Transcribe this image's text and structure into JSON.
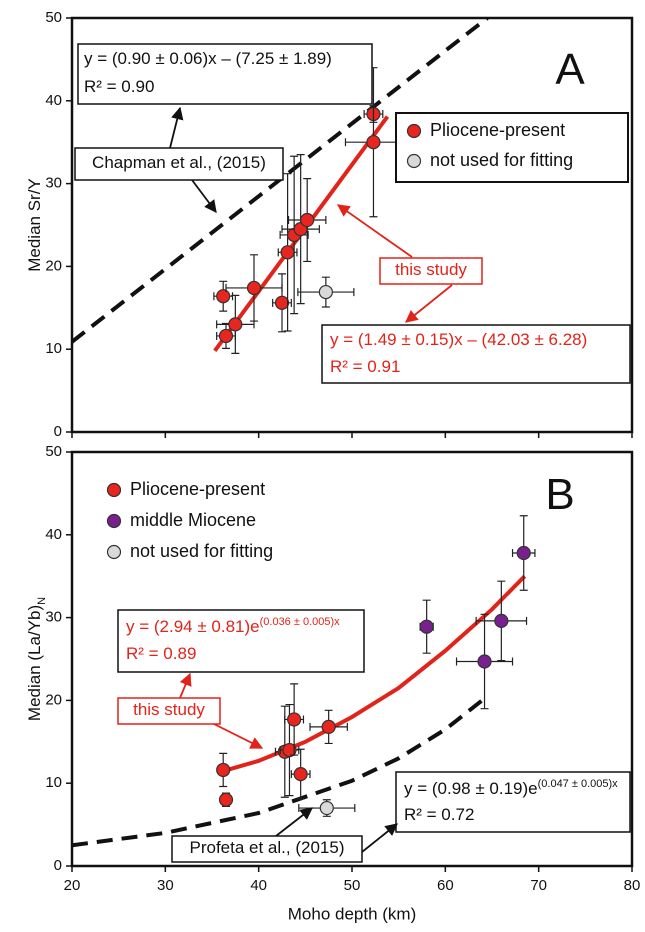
{
  "chart_data": [
    {
      "type": "scatter",
      "panel_label": "A",
      "ylabel": "Median Sr/Y",
      "xlim": [
        20,
        80
      ],
      "ylim": [
        0,
        50
      ],
      "xticks": [
        20,
        30,
        40,
        50,
        60,
        70,
        80
      ],
      "yticks": [
        0,
        10,
        20,
        30,
        40,
        50
      ],
      "legend": "upper right",
      "legend_frame": true,
      "series": [
        {
          "name": "Pliocene-present",
          "color": "#e8251e",
          "x": [
            36.2,
            36.5,
            37.5,
            39.5,
            42.5,
            43.1,
            43.8,
            44.5,
            45.2,
            52.3,
            52.3
          ],
          "values": [
            16.4,
            11.6,
            13.0,
            17.4,
            15.6,
            21.7,
            23.8,
            24.5,
            25.6,
            38.4,
            35.0
          ],
          "xerr": [
            1,
            1,
            2,
            3,
            1,
            1,
            1.5,
            2,
            2,
            1,
            3
          ],
          "yerr": [
            1.8,
            1.5,
            3.5,
            4,
            3.5,
            9.5,
            9.5,
            9,
            5,
            1,
            9
          ]
        },
        {
          "name": "not used for fitting",
          "color": "#d9d9d9",
          "x": [
            47.2
          ],
          "values": [
            16.9
          ],
          "xerr": [
            3
          ],
          "yerr": [
            1.8
          ]
        }
      ],
      "fits": [
        {
          "color": "#e2231a",
          "dashed": false,
          "x": [
            35.3,
            53.8
          ],
          "values": [
            9.8,
            38.1
          ]
        },
        {
          "color": "#111111",
          "dashed": true,
          "x": [
            20,
            64.5
          ],
          "values": [
            10.9,
            50
          ]
        }
      ],
      "annotations": [
        {
          "text": "A",
          "color": "#111111"
        },
        {
          "text": "y = (0.90 ± 0.06)x – (7.25 ± 1.89)",
          "color": "#111111"
        },
        {
          "text": "R² = 0.90",
          "color": "#111111"
        },
        {
          "text": "Chapman et al., (2015)",
          "color": "#111111"
        },
        {
          "text": "this study",
          "color": "#e2231a"
        },
        {
          "text": "y = (1.49 ± 0.15)x – (42.03 ± 6.28)",
          "color": "#e2231a"
        },
        {
          "text": "R² = 0.91",
          "color": "#e2231a"
        }
      ]
    },
    {
      "type": "scatter",
      "panel_label": "B",
      "ylabel": "Median (La/Yb)",
      "ylabel_sub": "N",
      "xlabel": "Moho depth (km)",
      "xlim": [
        20,
        80
      ],
      "ylim": [
        0,
        50
      ],
      "xticks": [
        20,
        30,
        40,
        50,
        60,
        70,
        80
      ],
      "yticks": [
        0,
        10,
        20,
        30,
        40,
        50
      ],
      "legend": "upper left",
      "legend_frame": false,
      "series": [
        {
          "name": "Pliocene-present",
          "color": "#e8251e",
          "x": [
            36.2,
            36.5,
            42.8,
            43.3,
            43.8,
            44.5,
            47.5
          ],
          "values": [
            11.6,
            8.0,
            13.8,
            14.0,
            17.7,
            11.1,
            16.8
          ],
          "xerr": [
            0.5,
            0.5,
            1,
            1,
            1,
            1,
            2
          ],
          "yerr": [
            2,
            0.8,
            5.5,
            5.5,
            4.3,
            3,
            2
          ]
        },
        {
          "name": "middle Miocene",
          "color": "#7a1f8e",
          "x": [
            58.0,
            64.2,
            66.0,
            68.4
          ],
          "values": [
            28.9,
            24.7,
            29.6,
            37.8
          ],
          "xerr": [
            0.7,
            3,
            2.7,
            1.2
          ],
          "yerr": [
            3.2,
            5.7,
            4.8,
            4.5
          ]
        },
        {
          "name": "not used for fitting",
          "color": "#d9d9d9",
          "x": [
            47.3
          ],
          "values": [
            7.0
          ],
          "xerr": [
            3
          ],
          "yerr": [
            1
          ]
        }
      ],
      "fits": [
        {
          "color": "#e2231a",
          "dashed": false,
          "x": [
            36.3,
            40,
            45,
            50,
            55,
            60,
            65,
            68.5
          ],
          "values": [
            11.5,
            12.7,
            15.0,
            18.0,
            21.5,
            26.0,
            31.0,
            35.0
          ]
        },
        {
          "color": "#111111",
          "dashed": true,
          "x": [
            20,
            30,
            40,
            50,
            55,
            60,
            64.5
          ],
          "values": [
            2.5,
            4.0,
            6.4,
            10.3,
            13.0,
            16.5,
            20.5
          ]
        }
      ],
      "annotations": [
        {
          "text": "B",
          "color": "#111111"
        },
        {
          "text": "y = (2.94 ± 0.81)e",
          "sup": "(0.036 ± 0.005)x",
          "color": "#e2231a"
        },
        {
          "text": "R² = 0.89",
          "color": "#e2231a"
        },
        {
          "text": "this study",
          "color": "#e2231a"
        },
        {
          "text": "y = (0.98 ± 0.19)e",
          "sup": "(0.047 ± 0.005)x",
          "color": "#111111"
        },
        {
          "text": "R² = 0.72",
          "color": "#111111"
        },
        {
          "text": "Profeta et al., (2015)",
          "color": "#111111"
        }
      ]
    }
  ]
}
